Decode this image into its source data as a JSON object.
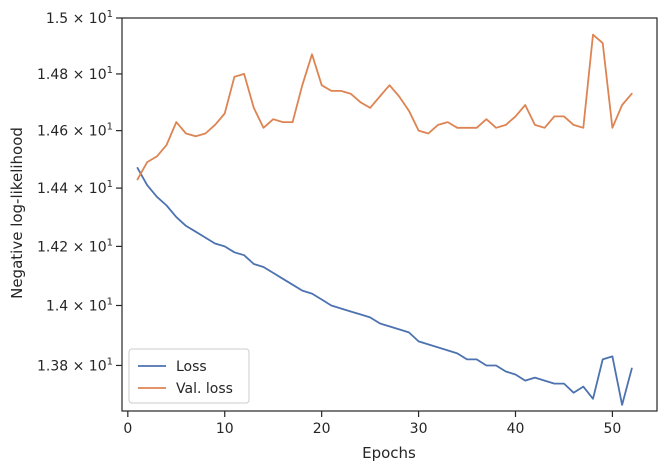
{
  "chart_data": {
    "type": "line",
    "xlabel": "Epochs",
    "ylabel": "Negative log-likelihood",
    "xlim": [
      -0.6,
      54.6
    ],
    "ylim": [
      13.65,
      15.0
    ],
    "y_scale": "log",
    "grid": false,
    "legend_position": "lower-left",
    "x_ticks": [
      0,
      10,
      20,
      30,
      40,
      50
    ],
    "x_tick_labels": [
      "0",
      "10",
      "20",
      "30",
      "40",
      "50"
    ],
    "y_ticks": [
      {
        "value": 13.8,
        "mantissa": "1.38"
      },
      {
        "value": 14.0,
        "mantissa": "1.4"
      },
      {
        "value": 14.2,
        "mantissa": "1.42"
      },
      {
        "value": 14.4,
        "mantissa": "1.44"
      },
      {
        "value": 14.6,
        "mantissa": "1.46"
      },
      {
        "value": 14.8,
        "mantissa": "1.48"
      },
      {
        "value": 15.0,
        "mantissa": "1.5"
      }
    ],
    "tick_times": "×",
    "tick_base": "10",
    "tick_exp": "1",
    "x": [
      1,
      2,
      3,
      4,
      5,
      6,
      7,
      8,
      9,
      10,
      11,
      12,
      13,
      14,
      15,
      16,
      17,
      18,
      19,
      20,
      21,
      22,
      23,
      24,
      25,
      26,
      27,
      28,
      29,
      30,
      31,
      32,
      33,
      34,
      35,
      36,
      37,
      38,
      39,
      40,
      41,
      42,
      43,
      44,
      45,
      46,
      47,
      48,
      49,
      50,
      51,
      52
    ],
    "series": [
      {
        "name": "Loss",
        "color": "#4c72b0",
        "values": [
          14.47,
          14.41,
          14.37,
          14.34,
          14.3,
          14.27,
          14.25,
          14.23,
          14.21,
          14.2,
          14.18,
          14.17,
          14.14,
          14.13,
          14.11,
          14.09,
          14.07,
          14.05,
          14.04,
          14.02,
          14.0,
          13.99,
          13.98,
          13.97,
          13.96,
          13.94,
          13.93,
          13.92,
          13.91,
          13.88,
          13.87,
          13.86,
          13.85,
          13.84,
          13.82,
          13.82,
          13.8,
          13.8,
          13.78,
          13.77,
          13.75,
          13.76,
          13.75,
          13.74,
          13.74,
          13.71,
          13.73,
          13.69,
          13.82,
          13.83,
          13.67,
          13.79
        ]
      },
      {
        "name": "Val. loss",
        "color": "#dd8452",
        "values": [
          14.43,
          14.49,
          14.51,
          14.55,
          14.63,
          14.59,
          14.58,
          14.59,
          14.62,
          14.66,
          14.79,
          14.8,
          14.68,
          14.61,
          14.64,
          14.63,
          14.63,
          14.76,
          14.87,
          14.76,
          14.74,
          14.74,
          14.73,
          14.7,
          14.68,
          14.72,
          14.76,
          14.72,
          14.67,
          14.6,
          14.59,
          14.62,
          14.63,
          14.61,
          14.61,
          14.61,
          14.64,
          14.61,
          14.62,
          14.65,
          14.69,
          14.62,
          14.61,
          14.65,
          14.65,
          14.62,
          14.61,
          14.94,
          14.91,
          14.61,
          14.69,
          14.73
        ]
      }
    ]
  }
}
